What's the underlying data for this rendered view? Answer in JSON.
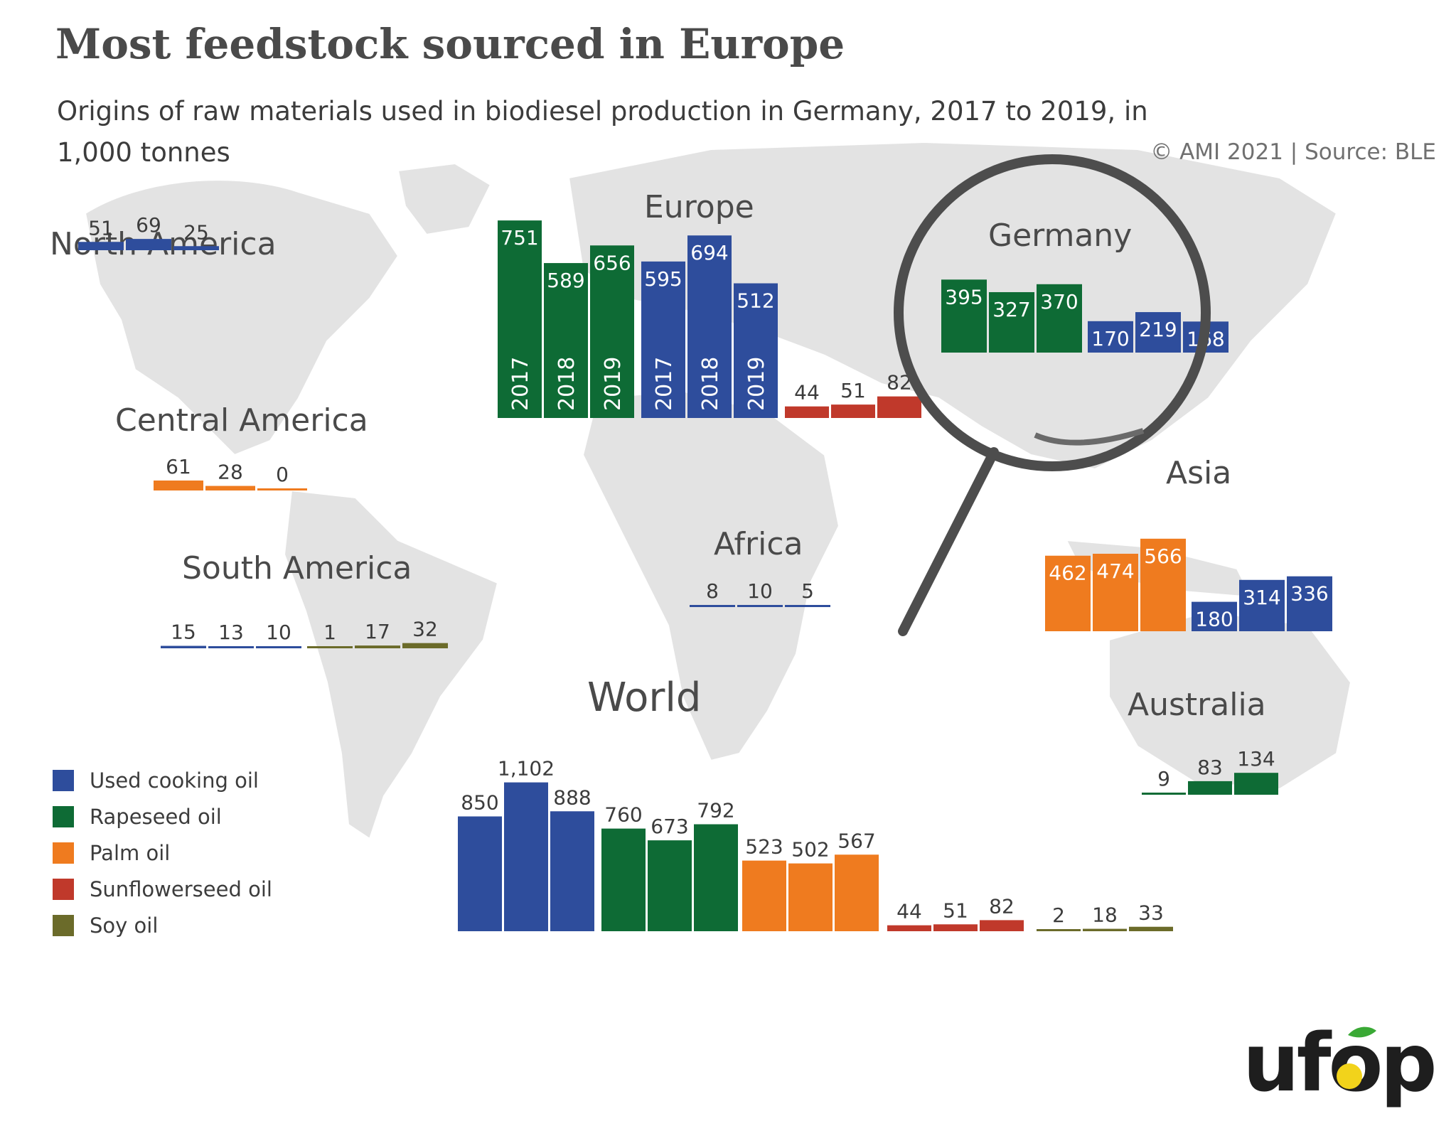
{
  "header": {
    "title": "Most feedstock sourced in Europe",
    "subtitle": "Origins of raw materials used in biodiesel production in Germany, 2017 to 2019, in 1,000 tonnes",
    "source": "© AMI 2021 | Source: BLE"
  },
  "colors": {
    "Used cooking oil": "#2e4d9c",
    "Rapeseed oil": "#0e6b35",
    "Palm oil": "#ef7b1f",
    "Sunflowerseed oil": "#c0392b",
    "Soy oil": "#6b6b2a"
  },
  "legend": [
    {
      "label": "Used cooking oil"
    },
    {
      "label": "Rapeseed oil"
    },
    {
      "label": "Palm oil"
    },
    {
      "label": "Sunflowerseed oil"
    },
    {
      "label": "Soy oil"
    }
  ],
  "logo": {
    "text": "ufop"
  },
  "chart_data": {
    "type": "bar",
    "title": "Most feedstock sourced in Europe",
    "years": [
      "2017",
      "2018",
      "2019"
    ],
    "regions": [
      {
        "name": "North America",
        "groups": [
          {
            "feedstock": "Used cooking oil",
            "values": [
              51,
              69,
              25
            ],
            "labels": [
              "51",
              "69",
              "25"
            ]
          }
        ]
      },
      {
        "name": "Central America",
        "groups": [
          {
            "feedstock": "Palm oil",
            "values": [
              61,
              28,
              0
            ],
            "labels": [
              "61",
              "28",
              "0"
            ]
          }
        ]
      },
      {
        "name": "South America",
        "groups": [
          {
            "feedstock": "Used cooking oil",
            "values": [
              15,
              13,
              10
            ],
            "labels": [
              "15",
              "13",
              "10"
            ]
          },
          {
            "feedstock": "Soy oil",
            "values": [
              1,
              17,
              32
            ],
            "labels": [
              "1",
              "17",
              "32"
            ]
          }
        ]
      },
      {
        "name": "Europe",
        "groups": [
          {
            "feedstock": "Rapeseed oil",
            "values": [
              751,
              589,
              656
            ],
            "labels": [
              "751",
              "589",
              "656"
            ]
          },
          {
            "feedstock": "Used cooking oil",
            "values": [
              595,
              694,
              512
            ],
            "labels": [
              "595",
              "694",
              "512"
            ]
          },
          {
            "feedstock": "Sunflowerseed oil",
            "values": [
              44,
              51,
              82
            ],
            "labels": [
              "44",
              "51",
              "82"
            ]
          }
        ]
      },
      {
        "name": "Germany",
        "groups": [
          {
            "feedstock": "Rapeseed oil",
            "values": [
              395,
              327,
              370
            ],
            "labels": [
              "395",
              "327",
              "370"
            ]
          },
          {
            "feedstock": "Used cooking oil",
            "values": [
              170,
              219,
              168
            ],
            "labels": [
              "170",
              "219",
              "168"
            ]
          }
        ]
      },
      {
        "name": "Africa",
        "groups": [
          {
            "feedstock": "Used cooking oil",
            "values": [
              8,
              10,
              5
            ],
            "labels": [
              "8",
              "10",
              "5"
            ]
          }
        ]
      },
      {
        "name": "Asia",
        "groups": [
          {
            "feedstock": "Palm oil",
            "values": [
              462,
              474,
              566
            ],
            "labels": [
              "462",
              "474",
              "566"
            ]
          },
          {
            "feedstock": "Used cooking oil",
            "values": [
              180,
              314,
              336
            ],
            "labels": [
              "180",
              "314",
              "336"
            ]
          }
        ]
      },
      {
        "name": "Australia",
        "groups": [
          {
            "feedstock": "Rapeseed oil",
            "values": [
              9,
              83,
              134
            ],
            "labels": [
              "9",
              "83",
              "134"
            ]
          }
        ]
      },
      {
        "name": "World",
        "groups": [
          {
            "feedstock": "Used cooking oil",
            "values": [
              850,
              1102,
              888
            ],
            "labels": [
              "850",
              "1,102",
              "888"
            ]
          },
          {
            "feedstock": "Rapeseed oil",
            "values": [
              760,
              673,
              792
            ],
            "labels": [
              "760",
              "673",
              "792"
            ]
          },
          {
            "feedstock": "Palm oil",
            "values": [
              523,
              502,
              567
            ],
            "labels": [
              "523",
              "502",
              "567"
            ]
          },
          {
            "feedstock": "Sunflowerseed oil",
            "values": [
              44,
              51,
              82
            ],
            "labels": [
              "44",
              "51",
              "82"
            ]
          },
          {
            "feedstock": "Soy oil",
            "values": [
              2,
              18,
              33
            ],
            "labels": [
              "2",
              "18",
              "33"
            ]
          }
        ]
      }
    ]
  }
}
